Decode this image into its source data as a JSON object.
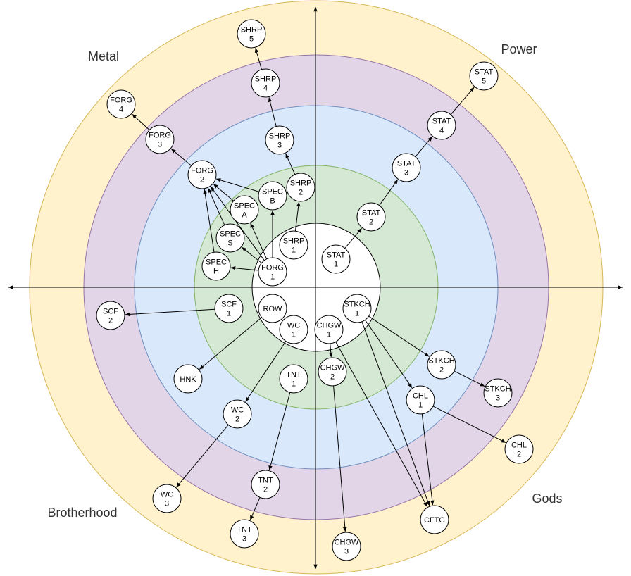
{
  "quadrants": {
    "top_left": "Metal",
    "top_right": "Power",
    "bottom_left": "Brotherhood",
    "bottom_right": "Gods"
  },
  "rings": [
    {
      "name": "ring-5",
      "fill": "#fff2cc",
      "stroke": "#d6b656"
    },
    {
      "name": "ring-4",
      "fill": "#e1d5e7",
      "stroke": "#9673a6"
    },
    {
      "name": "ring-3",
      "fill": "#dae8fc",
      "stroke": "#6c8ebf"
    },
    {
      "name": "ring-2",
      "fill": "#d5e8d4",
      "stroke": "#82b366"
    },
    {
      "name": "ring-1",
      "fill": "#ffffff",
      "stroke": "#000000"
    }
  ],
  "nodes": [
    {
      "id": "shrp5",
      "lines": [
        "SHRP",
        "5"
      ]
    },
    {
      "id": "shrp4",
      "lines": [
        "SHRP",
        "4"
      ]
    },
    {
      "id": "shrp3",
      "lines": [
        "SHRP",
        "3"
      ]
    },
    {
      "id": "shrp2",
      "lines": [
        "SHRP",
        "2"
      ]
    },
    {
      "id": "shrp1",
      "lines": [
        "SHRP",
        "1"
      ]
    },
    {
      "id": "forg4",
      "lines": [
        "FORG",
        "4"
      ]
    },
    {
      "id": "forg3",
      "lines": [
        "FORG",
        "3"
      ]
    },
    {
      "id": "forg2",
      "lines": [
        "FORG",
        "2"
      ]
    },
    {
      "id": "forg1",
      "lines": [
        "FORG",
        "1"
      ]
    },
    {
      "id": "specb",
      "lines": [
        "SPEC",
        "B"
      ]
    },
    {
      "id": "speca",
      "lines": [
        "SPEC",
        "A"
      ]
    },
    {
      "id": "specs",
      "lines": [
        "SPEC",
        "S"
      ]
    },
    {
      "id": "spech",
      "lines": [
        "SPEC",
        "H"
      ]
    },
    {
      "id": "stat5",
      "lines": [
        "STAT",
        "5"
      ]
    },
    {
      "id": "stat4",
      "lines": [
        "STAT",
        "4"
      ]
    },
    {
      "id": "stat3",
      "lines": [
        "STAT",
        "3"
      ]
    },
    {
      "id": "stat2",
      "lines": [
        "STAT",
        "2"
      ]
    },
    {
      "id": "stat1",
      "lines": [
        "STAT",
        "1"
      ]
    },
    {
      "id": "scf1",
      "lines": [
        "SCF",
        "1"
      ]
    },
    {
      "id": "scf2",
      "lines": [
        "SCF",
        "2"
      ]
    },
    {
      "id": "row",
      "lines": [
        "ROW"
      ]
    },
    {
      "id": "hnk",
      "lines": [
        "HNK"
      ]
    },
    {
      "id": "wc1",
      "lines": [
        "WC",
        "1"
      ]
    },
    {
      "id": "wc2",
      "lines": [
        "WC",
        "2"
      ]
    },
    {
      "id": "wc3",
      "lines": [
        "WC",
        "3"
      ]
    },
    {
      "id": "tnt1",
      "lines": [
        "TNT",
        "1"
      ]
    },
    {
      "id": "tnt2",
      "lines": [
        "TNT",
        "2"
      ]
    },
    {
      "id": "tnt3",
      "lines": [
        "TNT",
        "3"
      ]
    },
    {
      "id": "chgw1",
      "lines": [
        "CHGW",
        "1"
      ]
    },
    {
      "id": "chgw2",
      "lines": [
        "CHGW",
        "2"
      ]
    },
    {
      "id": "chgw3",
      "lines": [
        "CHGW",
        "3"
      ]
    },
    {
      "id": "stkch1",
      "lines": [
        "STKCH",
        "1"
      ]
    },
    {
      "id": "stkch2",
      "lines": [
        "STKCH",
        "2"
      ]
    },
    {
      "id": "stkch3",
      "lines": [
        "STKCH",
        "3"
      ]
    },
    {
      "id": "chl1",
      "lines": [
        "CHL",
        "1"
      ]
    },
    {
      "id": "chl2",
      "lines": [
        "CHL",
        "2"
      ]
    },
    {
      "id": "cftg",
      "lines": [
        "CFTG"
      ]
    }
  ],
  "edges": [
    [
      "shrp4",
      "shrp5"
    ],
    [
      "shrp3",
      "shrp4"
    ],
    [
      "shrp2",
      "shrp3"
    ],
    [
      "shrp1",
      "shrp2"
    ],
    [
      "forg3",
      "forg4"
    ],
    [
      "forg2",
      "forg3"
    ],
    [
      "specb",
      "forg2"
    ],
    [
      "speca",
      "forg2"
    ],
    [
      "specs",
      "forg2"
    ],
    [
      "spech",
      "forg2"
    ],
    [
      "forg1",
      "specb"
    ],
    [
      "forg1",
      "speca"
    ],
    [
      "forg1",
      "specs"
    ],
    [
      "forg1",
      "spech"
    ],
    [
      "forg1",
      "forg2"
    ],
    [
      "shrp2",
      "specb"
    ],
    [
      "stat1",
      "stat2"
    ],
    [
      "stat2",
      "stat3"
    ],
    [
      "stat3",
      "stat4"
    ],
    [
      "stat4",
      "stat5"
    ],
    [
      "scf1",
      "scf2"
    ],
    [
      "row",
      "hnk"
    ],
    [
      "wc1",
      "wc2"
    ],
    [
      "wc2",
      "wc3"
    ],
    [
      "tnt1",
      "tnt2"
    ],
    [
      "tnt2",
      "tnt3"
    ],
    [
      "chgw1",
      "chgw2"
    ],
    [
      "chgw2",
      "chgw3"
    ],
    [
      "chgw1",
      "cftg"
    ],
    [
      "stkch1",
      "stkch2"
    ],
    [
      "stkch2",
      "stkch3"
    ],
    [
      "stkch1",
      "chl1"
    ],
    [
      "stkch1",
      "cftg"
    ],
    [
      "chl1",
      "chl2"
    ],
    [
      "chl1",
      "cftg"
    ]
  ]
}
